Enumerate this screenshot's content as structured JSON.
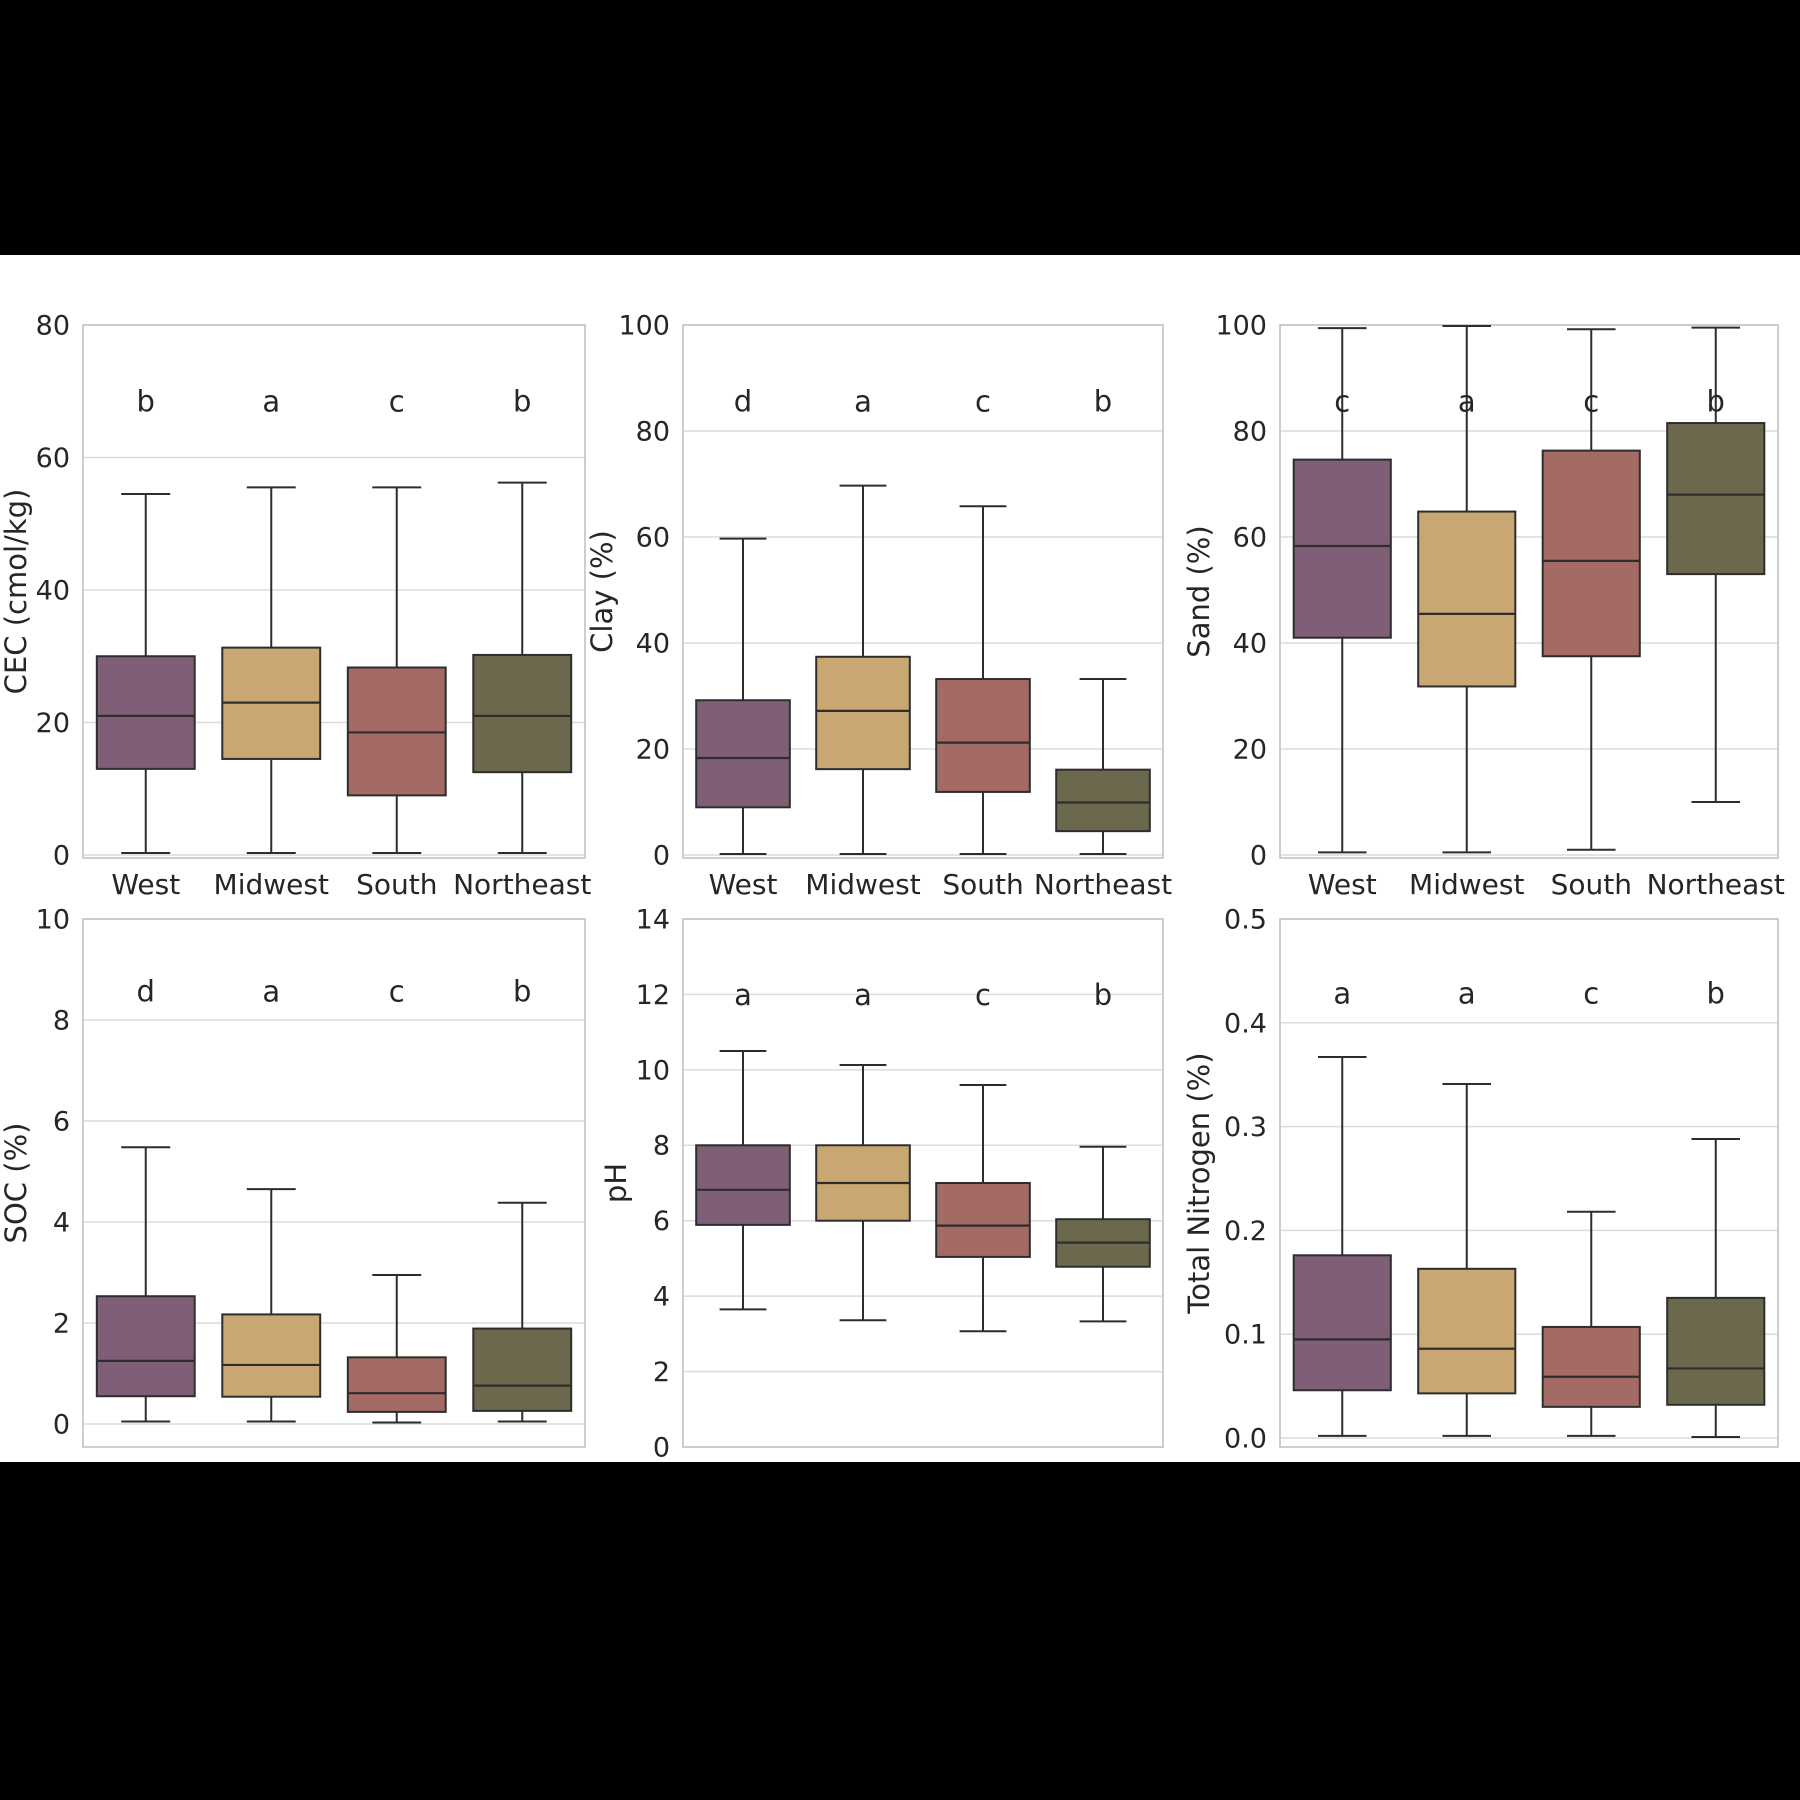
{
  "figure": {
    "background": "#000000",
    "panel_background": "#ffffff",
    "text_color": "#262626",
    "grid_color": "#dcdcdc",
    "spine_color": "#c6c6c6",
    "box_edge_color": "#2d2d2d",
    "categories": [
      "West",
      "Midwest",
      "South",
      "Northeast"
    ],
    "region_colors": {
      "West": "#7f5f77",
      "Midwest": "#c9a773",
      "South": "#a36b64",
      "Northeast": "#6c684e"
    }
  },
  "chart_data": [
    {
      "type": "box",
      "ylabel": "CEC (cmol/kg)",
      "ylim": [
        0,
        80
      ],
      "yticks": [
        0,
        20,
        40,
        60,
        80
      ],
      "ytick_labels": [
        "0",
        "20",
        "40",
        "60",
        "80"
      ],
      "categories": [
        "West",
        "Midwest",
        "South",
        "Northeast"
      ],
      "significance_letters": [
        "b",
        "a",
        "c",
        "b"
      ],
      "series": [
        {
          "category": "West",
          "whisker_low": 0.3,
          "q1": 13.0,
          "median": 21.0,
          "q3": 30.0,
          "whisker_high": 54.5
        },
        {
          "category": "Midwest",
          "whisker_low": 0.3,
          "q1": 14.5,
          "median": 23.0,
          "q3": 31.3,
          "whisker_high": 55.5
        },
        {
          "category": "South",
          "whisker_low": 0.3,
          "q1": 9.0,
          "median": 18.5,
          "q3": 28.3,
          "whisker_high": 55.5
        },
        {
          "category": "Northeast",
          "whisker_low": 0.3,
          "q1": 12.5,
          "median": 21.0,
          "q3": 30.2,
          "whisker_high": 56.2
        }
      ]
    },
    {
      "type": "box",
      "ylabel": "Clay (%)",
      "ylim": [
        0,
        100
      ],
      "yticks": [
        0,
        20,
        40,
        60,
        80,
        100
      ],
      "ytick_labels": [
        "0",
        "20",
        "40",
        "60",
        "80",
        "100"
      ],
      "categories": [
        "West",
        "Midwest",
        "South",
        "Northeast"
      ],
      "significance_letters": [
        "d",
        "a",
        "c",
        "b"
      ],
      "series": [
        {
          "category": "West",
          "whisker_low": 0.2,
          "q1": 9.0,
          "median": 18.3,
          "q3": 29.2,
          "whisker_high": 59.7
        },
        {
          "category": "Midwest",
          "whisker_low": 0.2,
          "q1": 16.2,
          "median": 27.2,
          "q3": 37.4,
          "whisker_high": 69.7
        },
        {
          "category": "South",
          "whisker_low": 0.2,
          "q1": 11.9,
          "median": 21.2,
          "q3": 33.2,
          "whisker_high": 65.8
        },
        {
          "category": "Northeast",
          "whisker_low": 0.2,
          "q1": 4.5,
          "median": 9.9,
          "q3": 16.1,
          "whisker_high": 33.2
        }
      ]
    },
    {
      "type": "box",
      "ylabel": "Sand (%)",
      "ylim": [
        0,
        100
      ],
      "yticks": [
        0,
        20,
        40,
        60,
        80,
        100
      ],
      "ytick_labels": [
        "0",
        "20",
        "40",
        "60",
        "80",
        "100"
      ],
      "categories": [
        "West",
        "Midwest",
        "South",
        "Northeast"
      ],
      "significance_letters": [
        "c",
        "a",
        "c",
        "b"
      ],
      "series": [
        {
          "category": "West",
          "whisker_low": 0.5,
          "q1": 41.0,
          "median": 58.3,
          "q3": 74.6,
          "whisker_high": 99.4
        },
        {
          "category": "Midwest",
          "whisker_low": 0.5,
          "q1": 31.8,
          "median": 45.5,
          "q3": 64.8,
          "whisker_high": 99.8
        },
        {
          "category": "South",
          "whisker_low": 1.0,
          "q1": 37.5,
          "median": 55.5,
          "q3": 76.3,
          "whisker_high": 99.2
        },
        {
          "category": "Northeast",
          "whisker_low": 10.0,
          "q1": 53.0,
          "median": 68.0,
          "q3": 81.5,
          "whisker_high": 99.5
        }
      ]
    },
    {
      "type": "box",
      "ylabel": "SOC (%)",
      "ylim": [
        0,
        10
      ],
      "yticks": [
        0,
        2,
        4,
        6,
        8,
        10
      ],
      "ytick_labels": [
        "0",
        "2",
        "4",
        "6",
        "8",
        "10"
      ],
      "categories": [
        "West",
        "Midwest",
        "South",
        "Northeast"
      ],
      "significance_letters": [
        "d",
        "a",
        "c",
        "b"
      ],
      "series": [
        {
          "category": "West",
          "whisker_low": 0.05,
          "q1": 0.55,
          "median": 1.25,
          "q3": 2.53,
          "whisker_high": 5.48
        },
        {
          "category": "Midwest",
          "whisker_low": 0.05,
          "q1": 0.54,
          "median": 1.17,
          "q3": 2.17,
          "whisker_high": 4.65
        },
        {
          "category": "South",
          "whisker_low": 0.03,
          "q1": 0.24,
          "median": 0.61,
          "q3": 1.32,
          "whisker_high": 2.95
        },
        {
          "category": "Northeast",
          "whisker_low": 0.05,
          "q1": 0.26,
          "median": 0.76,
          "q3": 1.89,
          "whisker_high": 4.38
        }
      ]
    },
    {
      "type": "box",
      "ylabel": "pH",
      "ylim": [
        0,
        14
      ],
      "yticks": [
        0,
        2,
        4,
        6,
        8,
        10,
        12,
        14
      ],
      "ytick_labels": [
        "0",
        "2",
        "4",
        "6",
        "8",
        "10",
        "12",
        "14"
      ],
      "categories": [
        "West",
        "Midwest",
        "South",
        "Northeast"
      ],
      "significance_letters": [
        "a",
        "a",
        "c",
        "b"
      ],
      "series": [
        {
          "category": "West",
          "whisker_low": 3.65,
          "q1": 5.89,
          "median": 6.82,
          "q3": 8.0,
          "whisker_high": 10.5
        },
        {
          "category": "Midwest",
          "whisker_low": 3.36,
          "q1": 6.0,
          "median": 7.0,
          "q3": 8.0,
          "whisker_high": 10.13
        },
        {
          "category": "South",
          "whisker_low": 3.07,
          "q1": 5.04,
          "median": 5.87,
          "q3": 7.0,
          "whisker_high": 9.6
        },
        {
          "category": "Northeast",
          "whisker_low": 3.33,
          "q1": 4.78,
          "median": 5.42,
          "q3": 6.04,
          "whisker_high": 7.96
        }
      ]
    },
    {
      "type": "box",
      "ylabel": "Total Nitrogen (%)",
      "ylim": [
        0,
        0.5
      ],
      "yticks": [
        0,
        0.1,
        0.2,
        0.3,
        0.4,
        0.5
      ],
      "ytick_labels": [
        "0.0",
        "0.1",
        "0.2",
        "0.3",
        "0.4",
        "0.5"
      ],
      "categories": [
        "West",
        "Midwest",
        "South",
        "Northeast"
      ],
      "significance_letters": [
        "a",
        "a",
        "c",
        "b"
      ],
      "series": [
        {
          "category": "West",
          "whisker_low": 0.002,
          "q1": 0.046,
          "median": 0.095,
          "q3": 0.176,
          "whisker_high": 0.367
        },
        {
          "category": "Midwest",
          "whisker_low": 0.002,
          "q1": 0.043,
          "median": 0.086,
          "q3": 0.163,
          "whisker_high": 0.341
        },
        {
          "category": "South",
          "whisker_low": 0.002,
          "q1": 0.03,
          "median": 0.059,
          "q3": 0.107,
          "whisker_high": 0.218
        },
        {
          "category": "Northeast",
          "whisker_low": 0.001,
          "q1": 0.032,
          "median": 0.067,
          "q3": 0.135,
          "whisker_high": 0.288
        }
      ]
    }
  ]
}
